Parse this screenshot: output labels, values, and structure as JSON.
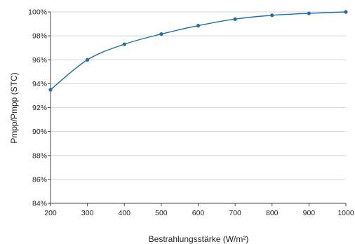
{
  "chart_data": {
    "type": "line",
    "title": "",
    "xlabel": "Bestrahlungsstärke (W/m²)",
    "ylabel": "Pmpp/Pmpp (STC)",
    "x": [
      200,
      300,
      400,
      500,
      600,
      700,
      800,
      900,
      1000
    ],
    "series": [
      {
        "values": [
          93.5,
          96.0,
          97.3,
          98.15,
          98.85,
          99.4,
          99.72,
          99.88,
          100.0
        ]
      }
    ],
    "xlim": [
      200,
      1000
    ],
    "ylim": [
      84,
      100
    ],
    "xticks": [
      "200",
      "300",
      "400",
      "500",
      "600",
      "700",
      "800",
      "900",
      "1000"
    ],
    "yticks": [
      "84%",
      "86%",
      "88%",
      "90%",
      "92%",
      "94%",
      "96%",
      "98%",
      "100%"
    ],
    "grid": true,
    "line_color": "#1f6ea8",
    "grid_color": "#d4d4d4",
    "axis_color": "#444444"
  }
}
